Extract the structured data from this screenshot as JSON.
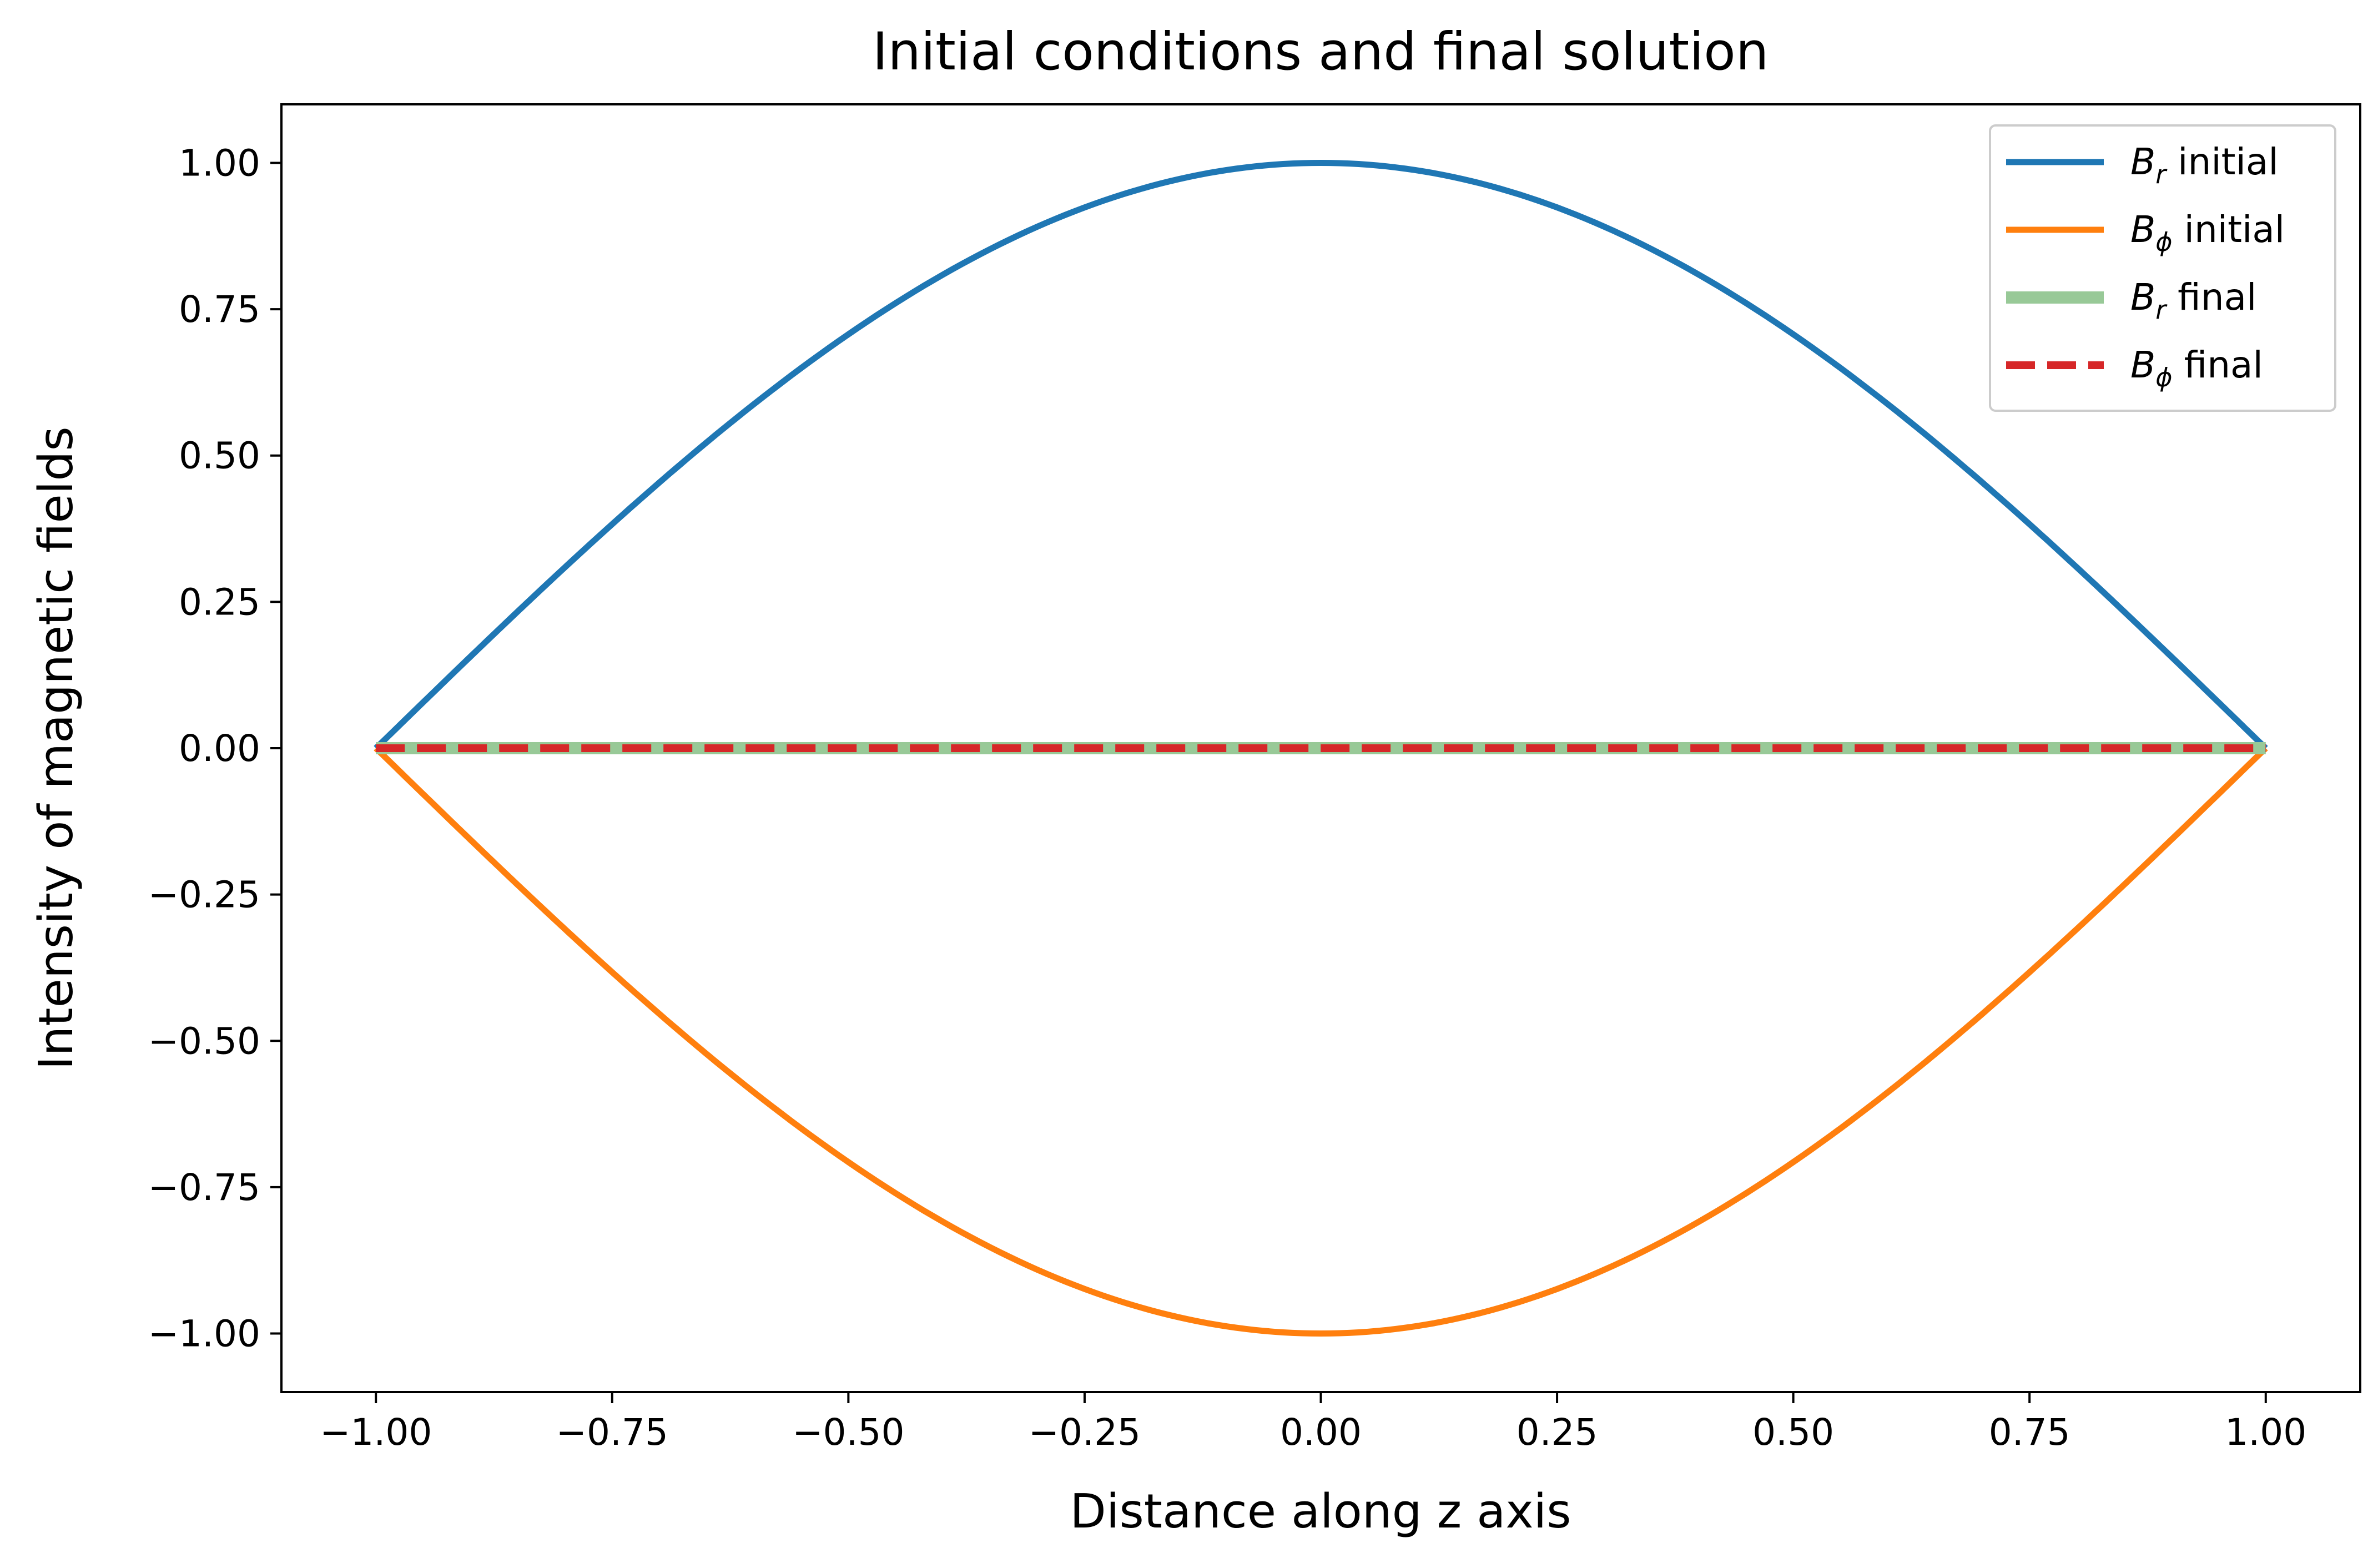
{
  "chart_data": {
    "type": "line",
    "title": "Initial conditions and final solution",
    "xlabel": "Distance along z axis",
    "ylabel": "Intensity of magnetic fields",
    "xlim": [
      -1.1,
      1.1
    ],
    "ylim": [
      -1.1,
      1.1
    ],
    "x_ticks": [
      -1.0,
      -0.75,
      -0.5,
      -0.25,
      0.0,
      0.25,
      0.5,
      0.75,
      1.0
    ],
    "x_tick_labels": [
      "−1.00",
      "−0.75",
      "−0.50",
      "−0.25",
      "0.00",
      "0.25",
      "0.50",
      "0.75",
      "1.00"
    ],
    "y_ticks": [
      1.0,
      0.75,
      0.5,
      0.25,
      0.0,
      -0.25,
      -0.5,
      -0.75,
      -1.0
    ],
    "y_tick_labels": [
      "1.00",
      "0.75",
      "0.50",
      "0.25",
      "0.00",
      "−0.25",
      "−0.50",
      "−0.75",
      "−1.00"
    ],
    "grid": false,
    "legend_position": "top-right",
    "series": [
      {
        "name": "B_r initial",
        "legend_base": "B",
        "legend_sub": "r",
        "legend_suffix": " initial",
        "color": "#1f77b4",
        "style": "solid",
        "x": [
          -1.0,
          -0.9,
          -0.8,
          -0.7,
          -0.6,
          -0.5,
          -0.4,
          -0.3,
          -0.2,
          -0.1,
          0.0,
          0.1,
          0.2,
          0.3,
          0.4,
          0.5,
          0.6,
          0.7,
          0.8,
          0.9,
          1.0
        ],
        "y": [
          0.0,
          0.156,
          0.309,
          0.454,
          0.588,
          0.707,
          0.809,
          0.891,
          0.951,
          0.988,
          1.0,
          0.988,
          0.951,
          0.891,
          0.809,
          0.707,
          0.588,
          0.454,
          0.309,
          0.156,
          0.0
        ]
      },
      {
        "name": "B_phi initial",
        "legend_base": "B",
        "legend_sub": "ϕ",
        "legend_suffix": " initial",
        "color": "#ff7f0e",
        "style": "solid",
        "x": [
          -1.0,
          -0.9,
          -0.8,
          -0.7,
          -0.6,
          -0.5,
          -0.4,
          -0.3,
          -0.2,
          -0.1,
          0.0,
          0.1,
          0.2,
          0.3,
          0.4,
          0.5,
          0.6,
          0.7,
          0.8,
          0.9,
          1.0
        ],
        "y": [
          0.0,
          -0.156,
          -0.309,
          -0.454,
          -0.588,
          -0.707,
          -0.809,
          -0.891,
          -0.951,
          -0.988,
          -1.0,
          -0.988,
          -0.951,
          -0.891,
          -0.809,
          -0.707,
          -0.588,
          -0.454,
          -0.309,
          -0.156,
          0.0
        ]
      },
      {
        "name": "B_r final",
        "legend_base": "B",
        "legend_sub": "r",
        "legend_suffix": " final",
        "color": "#98c997",
        "style": "thick",
        "x": [
          -1.0,
          1.0
        ],
        "y": [
          0.0,
          0.0
        ]
      },
      {
        "name": "B_phi final",
        "legend_base": "B",
        "legend_sub": "ϕ",
        "legend_suffix": " final",
        "color": "#d62728",
        "style": "dashed",
        "x": [
          -1.0,
          1.0
        ],
        "y": [
          0.0,
          0.0
        ]
      }
    ]
  }
}
